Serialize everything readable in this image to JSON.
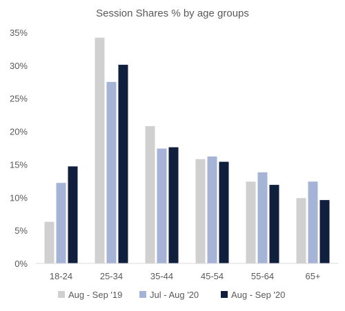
{
  "chart_data": {
    "type": "bar",
    "title": "Session Shares % by age groups",
    "xlabel": "",
    "ylabel": "",
    "categories": [
      "18-24",
      "25-34",
      "35-44",
      "45-54",
      "55-64",
      "65+"
    ],
    "series": [
      {
        "name": "Aug - Sep '19",
        "color": "#d0d0d0",
        "values": [
          6.3,
          34.2,
          20.8,
          15.8,
          12.4,
          9.9
        ]
      },
      {
        "name": "Jul - Aug '20",
        "color": "#a5b4d6",
        "values": [
          12.2,
          27.5,
          17.4,
          16.2,
          13.8,
          12.4
        ]
      },
      {
        "name": "Aug - Sep '20",
        "color": "#0f1f3d",
        "values": [
          14.7,
          30.1,
          17.6,
          15.4,
          11.9,
          9.6
        ]
      }
    ],
    "ylim": [
      0,
      35
    ],
    "yticks": [
      0,
      5,
      10,
      15,
      20,
      25,
      30,
      35
    ],
    "ytick_labels": [
      "0%",
      "5%",
      "10%",
      "15%",
      "20%",
      "25%",
      "30%",
      "35%"
    ],
    "grid": false,
    "legend_position": "bottom"
  }
}
